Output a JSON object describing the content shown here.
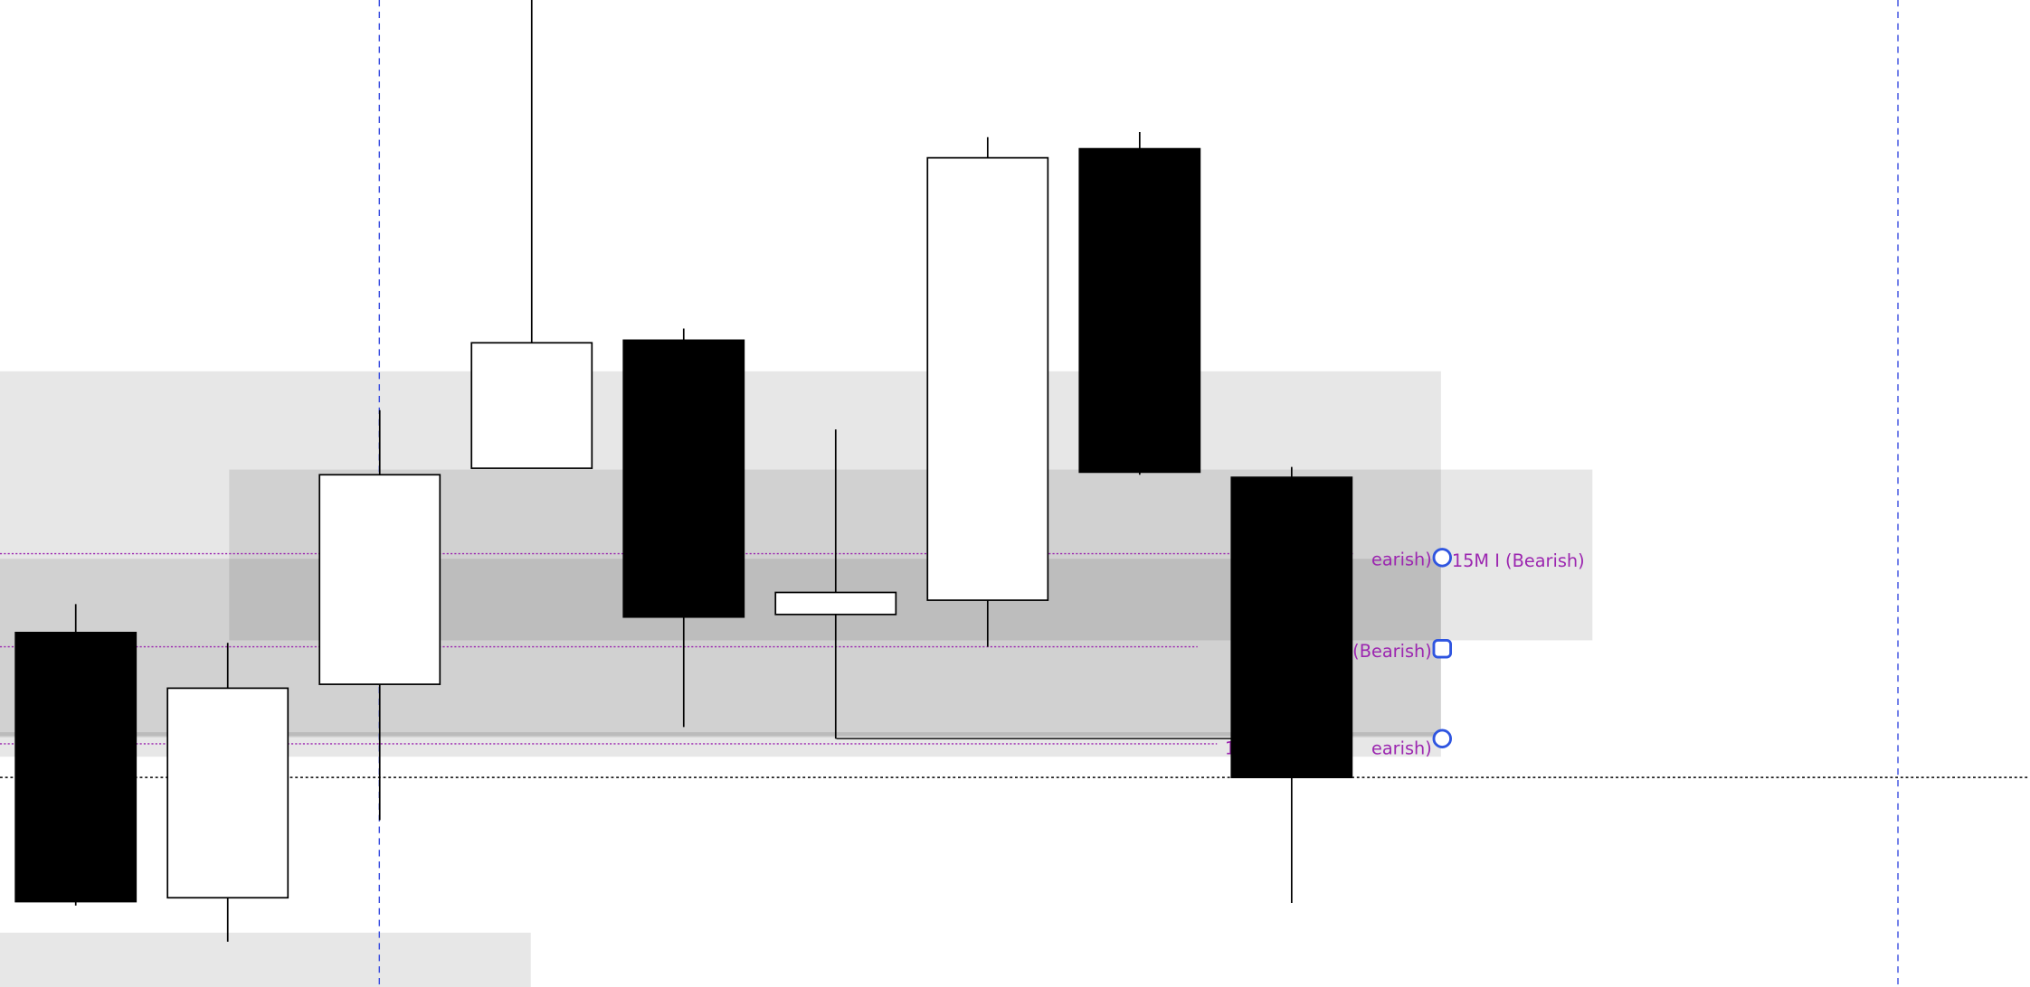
{
  "chart_data": {
    "type": "candlestick",
    "title": "",
    "xlabel": "",
    "ylabel": "",
    "grid": false,
    "colors": {
      "bullish_body": "#ffffff",
      "bearish_body": "#000000",
      "wick": "#000000",
      "zone": "#e6e6e6",
      "level_line": "#9c27b0",
      "level_label": "#9c27b0",
      "handle": "#2f55e0",
      "session_line": "#3b4fe0"
    },
    "candles": [
      {
        "open": 27.4,
        "high": 29.6,
        "low": 6.3,
        "close": 6.6
      },
      {
        "open": 6.9,
        "high": 26.6,
        "low": 3.5,
        "close": 23.1
      },
      {
        "open": 23.4,
        "high": 44.6,
        "low": 12.9,
        "close": 39.6
      },
      {
        "open": 40.1,
        "high": 76.3,
        "low": 40.1,
        "close": 49.8
      },
      {
        "open": 50.0,
        "high": 50.9,
        "low": 20.1,
        "close": 28.6
      },
      {
        "open": 28.8,
        "high": 43.1,
        "low": 19.2,
        "close": 30.5
      },
      {
        "open": 29.9,
        "high": 65.7,
        "low": 26.3,
        "close": 64.1
      },
      {
        "open": 64.8,
        "high": 66.1,
        "low": 39.6,
        "close": 39.8
      },
      {
        "open": 39.4,
        "high": 40.2,
        "low": 6.5,
        "close": 16.2
      }
    ],
    "levels": [
      {
        "label_left": "earish)",
        "label_right": "15M I (Bearish)",
        "handle": "circle-icon"
      },
      {
        "label_left": "30M ERT I (Bearish)",
        "label_right": "",
        "handle": "square-icon"
      },
      {
        "label_left": "1",
        "label_mid": "earish)",
        "handle": "circle-icon"
      }
    ]
  }
}
